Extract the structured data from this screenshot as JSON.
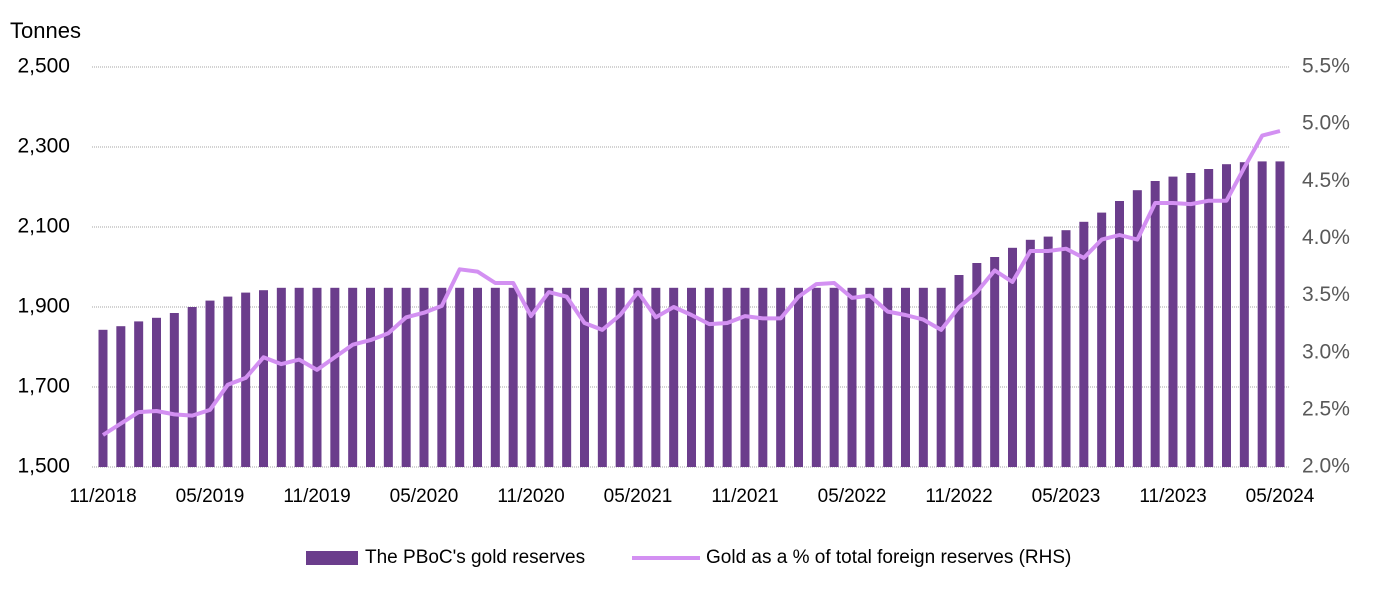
{
  "chart_data": {
    "type": "bar",
    "ylabel": "Tonnes",
    "categories": [
      "11/2018",
      null,
      null,
      null,
      null,
      null,
      "05/2019",
      null,
      null,
      null,
      null,
      null,
      "11/2019",
      null,
      null,
      null,
      null,
      null,
      "05/2020",
      null,
      null,
      null,
      null,
      null,
      "11/2020",
      null,
      null,
      null,
      null,
      null,
      "05/2021",
      null,
      null,
      null,
      null,
      null,
      "11/2021",
      null,
      null,
      null,
      null,
      null,
      "05/2022",
      null,
      null,
      null,
      null,
      null,
      "11/2022",
      null,
      null,
      null,
      null,
      null,
      "05/2023",
      null,
      null,
      null,
      null,
      null,
      "11/2023",
      null,
      null,
      null,
      null,
      null,
      "05/2024"
    ],
    "series": [
      {
        "name": "The PBoC's gold reserves",
        "type": "bar",
        "color": "#6b3d8c",
        "values": [
          1843,
          1852,
          1864,
          1873,
          1885,
          1900,
          1916,
          1926,
          1936,
          1942,
          1948,
          1948,
          1948,
          1948,
          1948,
          1948,
          1948,
          1948,
          1948,
          1948,
          1948,
          1948,
          1948,
          1948,
          1948,
          1948,
          1948,
          1948,
          1948,
          1948,
          1948,
          1948,
          1948,
          1948,
          1948,
          1948,
          1948,
          1948,
          1948,
          1948,
          1948,
          1948,
          1948,
          1948,
          1948,
          1948,
          1948,
          1948,
          1980,
          2010,
          2025,
          2048,
          2068,
          2076,
          2092,
          2113,
          2136,
          2165,
          2192,
          2215,
          2226,
          2235,
          2245,
          2257,
          2262,
          2264,
          2264
        ]
      },
      {
        "name": "Gold as a % of total foreign reserves (RHS)",
        "type": "line",
        "axis": "y2",
        "color": "#d390f2",
        "values": [
          2.28,
          2.38,
          2.48,
          2.49,
          2.46,
          2.45,
          2.5,
          2.72,
          2.78,
          2.96,
          2.9,
          2.94,
          2.85,
          2.96,
          3.07,
          3.11,
          3.17,
          3.31,
          3.35,
          3.41,
          3.73,
          3.71,
          3.61,
          3.61,
          3.32,
          3.53,
          3.49,
          3.26,
          3.2,
          3.33,
          3.53,
          3.31,
          3.4,
          3.33,
          3.25,
          3.26,
          3.32,
          3.3,
          3.3,
          3.49,
          3.6,
          3.61,
          3.48,
          3.5,
          3.36,
          3.33,
          3.29,
          3.2,
          3.4,
          3.53,
          3.72,
          3.62,
          3.89,
          3.89,
          3.91,
          3.83,
          3.99,
          4.03,
          3.99,
          4.31,
          4.31,
          4.3,
          4.33,
          4.33,
          4.62,
          4.9,
          4.94
        ]
      }
    ],
    "ylim": [
      1500,
      2500
    ],
    "yticks": [
      {
        "value": 1500,
        "label": "1,500"
      },
      {
        "value": 1700,
        "label": "1,700"
      },
      {
        "value": 1900,
        "label": "1,900"
      },
      {
        "value": 2100,
        "label": "2,100"
      },
      {
        "value": 2300,
        "label": "2,300"
      },
      {
        "value": 2500,
        "label": "2,500"
      }
    ],
    "y2lim": [
      2.0,
      5.5
    ],
    "y2ticks": [
      {
        "value": 2.0,
        "label": "2.0%"
      },
      {
        "value": 2.5,
        "label": "2.5%"
      },
      {
        "value": 3.0,
        "label": "3.0%"
      },
      {
        "value": 3.5,
        "label": "3.5%"
      },
      {
        "value": 4.0,
        "label": "4.0%"
      },
      {
        "value": 4.5,
        "label": "4.5%"
      },
      {
        "value": 5.0,
        "label": "5.0%"
      },
      {
        "value": 5.5,
        "label": "5.5%"
      }
    ],
    "grid": true,
    "legend": "bottom"
  }
}
